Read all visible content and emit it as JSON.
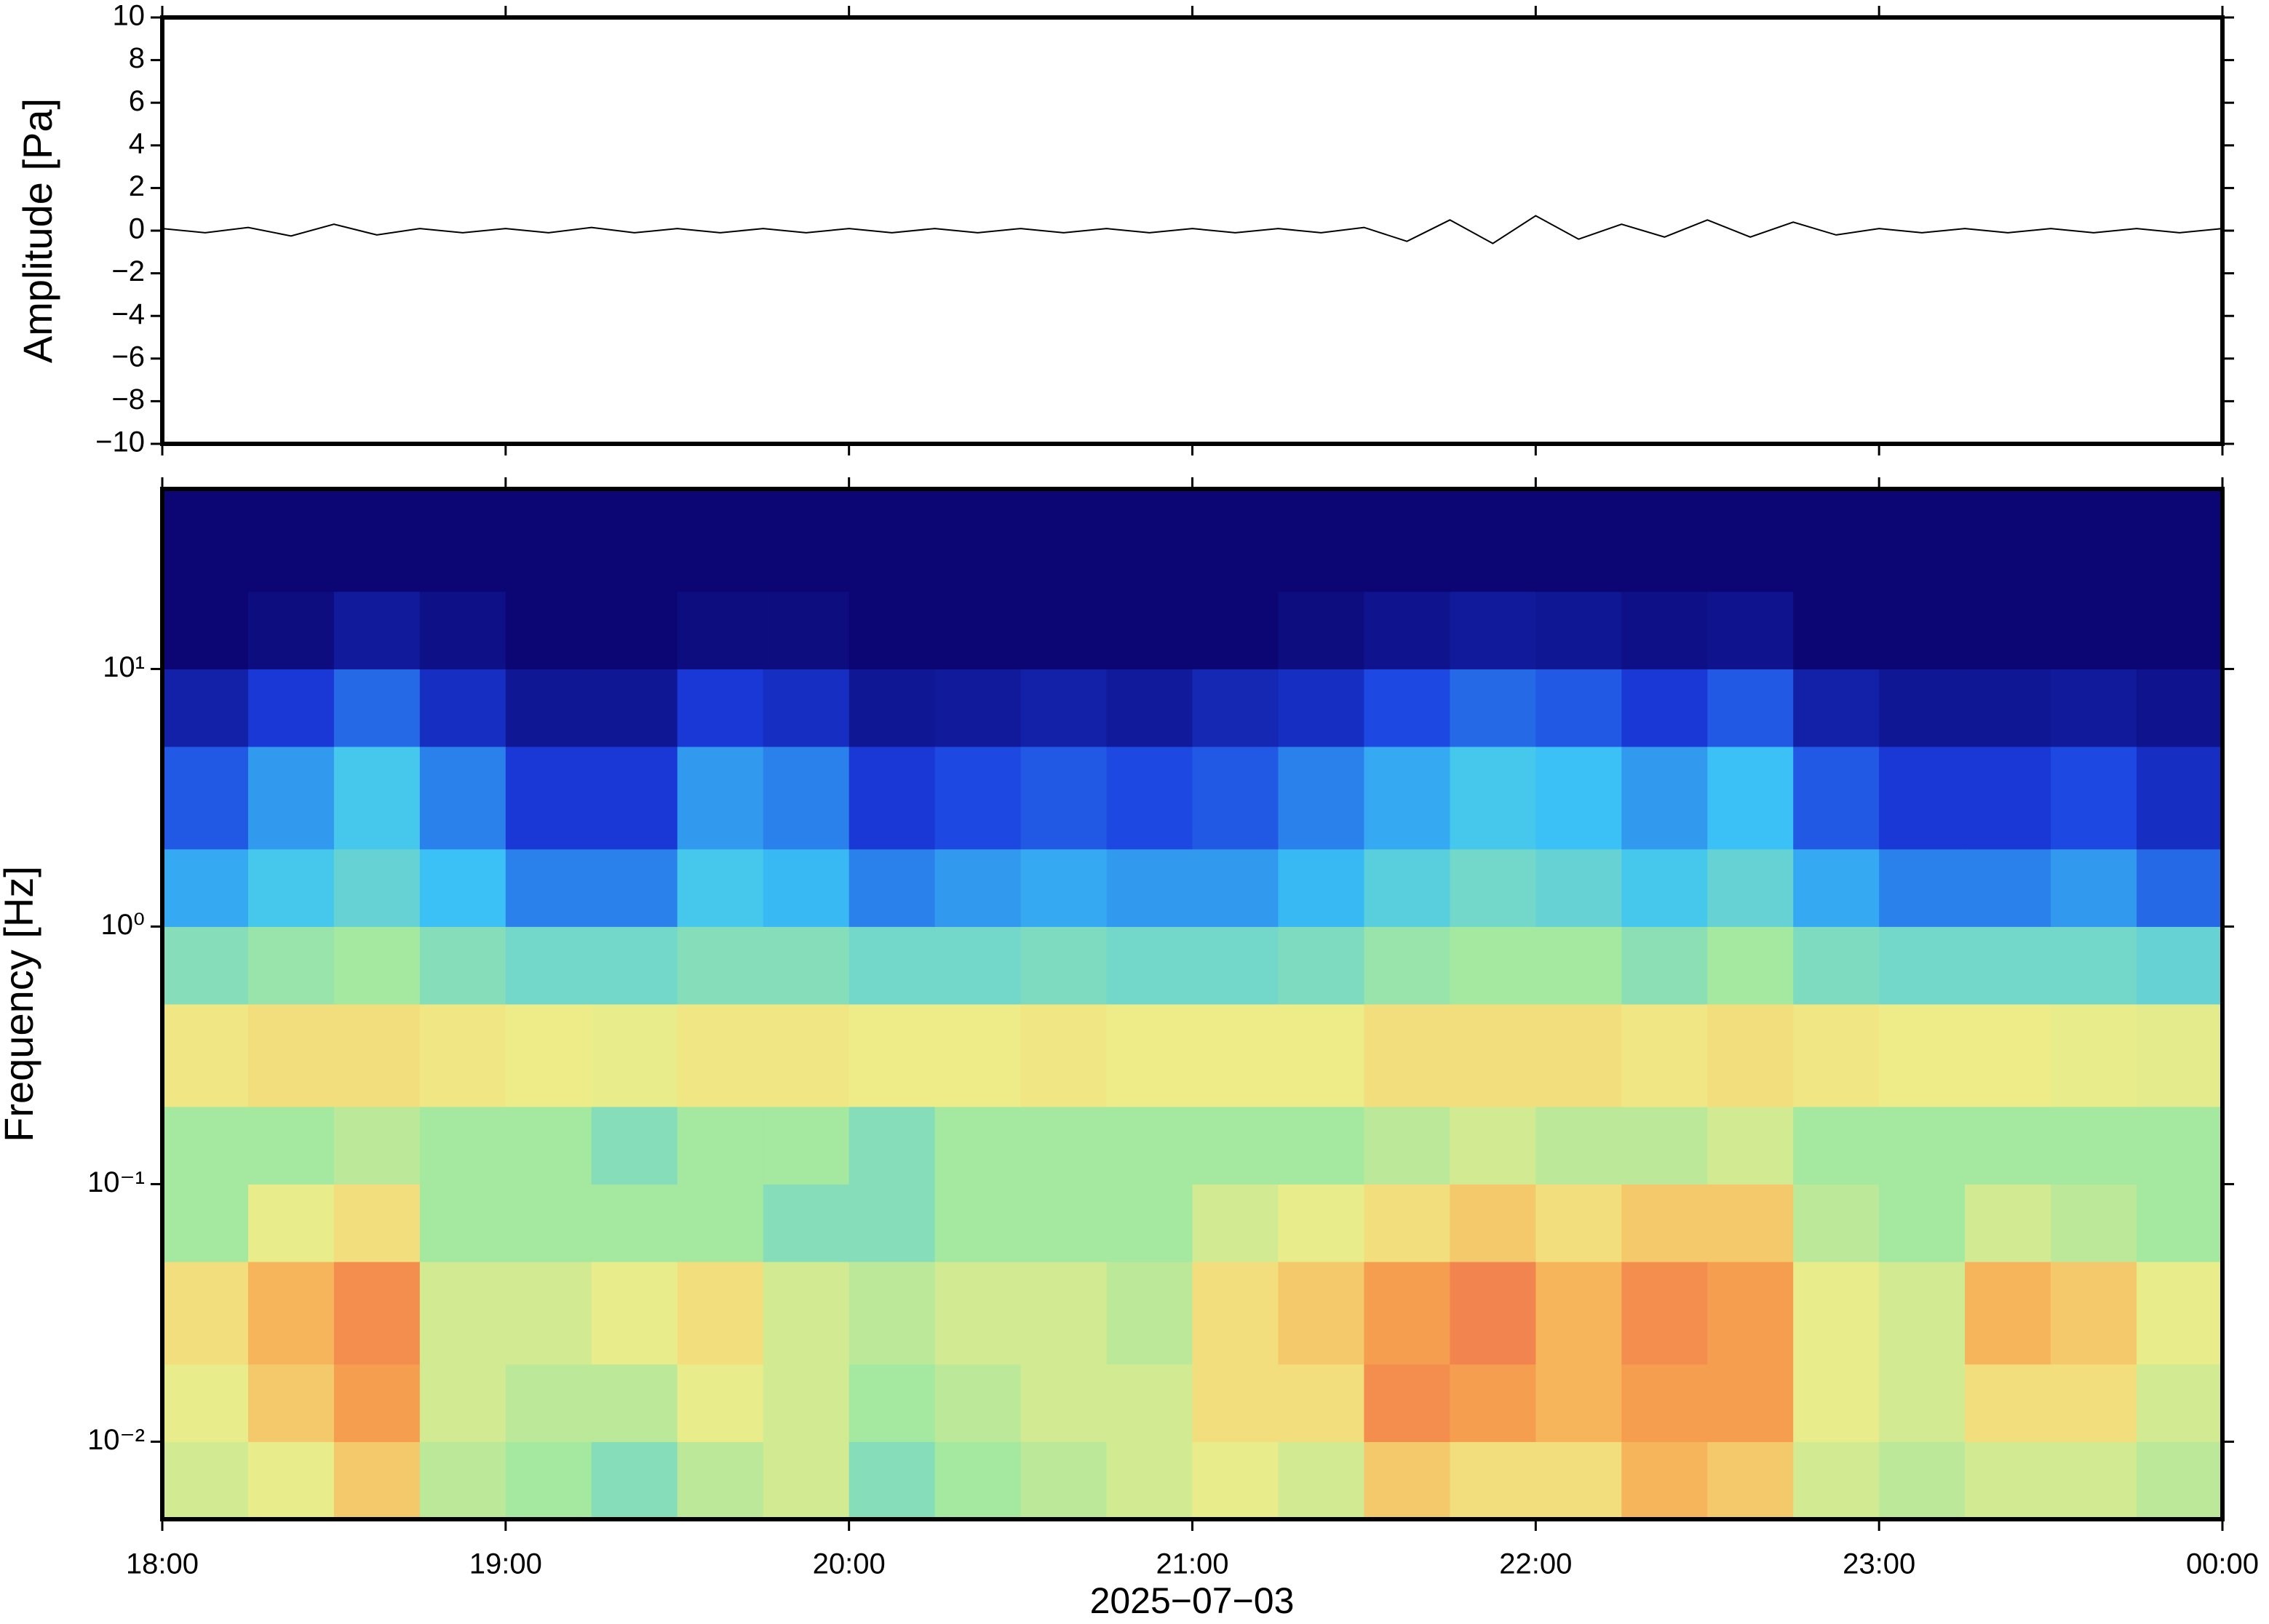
{
  "chart_data": [
    {
      "type": "line",
      "ylabel": "Amplitude [Pa]",
      "xlim": [
        18,
        24
      ],
      "xticks": [
        18,
        19,
        20,
        21,
        22,
        23,
        24
      ],
      "ylim": [
        -10,
        10
      ],
      "yticks": [
        {
          "value": -10,
          "label": "−10"
        },
        {
          "value": -8,
          "label": "−8"
        },
        {
          "value": -6,
          "label": "−6"
        },
        {
          "value": -4,
          "label": "−4"
        },
        {
          "value": -2,
          "label": "−2"
        },
        0,
        2,
        4,
        6,
        8,
        10
      ],
      "x": [
        18,
        18.125,
        18.25,
        18.375,
        18.5,
        18.625,
        18.75,
        18.875,
        19,
        19.125,
        19.25,
        19.375,
        19.5,
        19.625,
        19.75,
        19.875,
        20,
        20.125,
        20.25,
        20.375,
        20.5,
        20.625,
        20.75,
        20.875,
        21,
        21.125,
        21.25,
        21.375,
        21.5,
        21.625,
        21.75,
        21.875,
        22,
        22.125,
        22.25,
        22.375,
        22.5,
        22.625,
        22.75,
        22.875,
        23,
        23.125,
        23.25,
        23.375,
        23.5,
        23.625,
        23.75,
        23.875,
        24
      ],
      "series": [
        {
          "name": "Amplitude",
          "color": "#000000",
          "values": [
            0.1,
            -0.1,
            0.15,
            -0.25,
            0.3,
            -0.2,
            0.1,
            -0.1,
            0.1,
            -0.1,
            0.15,
            -0.1,
            0.1,
            -0.1,
            0.1,
            -0.1,
            0.1,
            -0.1,
            0.1,
            -0.1,
            0.1,
            -0.1,
            0.1,
            -0.1,
            0.1,
            -0.1,
            0.1,
            -0.1,
            0.15,
            -0.5,
            0.5,
            -0.6,
            0.7,
            -0.4,
            0.3,
            -0.3,
            0.5,
            -0.3,
            0.4,
            -0.2,
            0.1,
            -0.1,
            0.1,
            -0.1,
            0.1,
            -0.1,
            0.1,
            -0.1,
            0.1
          ]
        }
      ]
    },
    {
      "type": "spectrogram",
      "xlabel": "2025−07−03",
      "ylabel": "Frequency [Hz]",
      "ylog": true,
      "xlim": [
        18,
        24
      ],
      "xticks": [
        {
          "value": 18,
          "label": "18:00"
        },
        {
          "value": 19,
          "label": "19:00"
        },
        {
          "value": 20,
          "label": "20:00"
        },
        {
          "value": 21,
          "label": "21:00"
        },
        {
          "value": 22,
          "label": "22:00"
        },
        {
          "value": 23,
          "label": "23:00"
        },
        {
          "value": 24,
          "label": "00:00"
        }
      ],
      "ylim": [
        0.005,
        50
      ],
      "yticks": [
        {
          "value": 0.01,
          "label": "10⁻²"
        },
        {
          "value": 0.1,
          "label": "10⁻¹"
        },
        {
          "value": 1,
          "label": "10⁰"
        },
        {
          "value": 10,
          "label": "10¹"
        }
      ],
      "colormap": [
        "#0b0673",
        "#1a3ee0",
        "#3cc4f5",
        "#a5e8a0",
        "#f0ec88",
        "#f8a650",
        "#e8524e"
      ],
      "time_bins": [
        18,
        18.25,
        18.5,
        18.75,
        19,
        19.25,
        19.5,
        19.75,
        20,
        20.25,
        20.5,
        20.75,
        21,
        21.25,
        21.5,
        21.75,
        22,
        22.25,
        22.5,
        22.75,
        23,
        23.25,
        23.5,
        23.75,
        24
      ],
      "freq_bins": [
        0.005,
        0.01,
        0.02,
        0.05,
        0.1,
        0.2,
        0.5,
        1,
        2,
        5,
        10,
        20,
        50
      ],
      "levels": [
        [
          0.6,
          0.65,
          0.75,
          0.55,
          0.5,
          0.45,
          0.55,
          0.6,
          0.45,
          0.5,
          0.55,
          0.6,
          0.65,
          0.6,
          0.75,
          0.7,
          0.7,
          0.8,
          0.75,
          0.6,
          0.55,
          0.6,
          0.6,
          0.55
        ],
        [
          0.65,
          0.75,
          0.85,
          0.6,
          0.55,
          0.55,
          0.65,
          0.6,
          0.5,
          0.55,
          0.6,
          0.6,
          0.7,
          0.7,
          0.88,
          0.85,
          0.8,
          0.85,
          0.85,
          0.65,
          0.6,
          0.7,
          0.7,
          0.6
        ],
        [
          0.7,
          0.8,
          0.88,
          0.6,
          0.6,
          0.65,
          0.7,
          0.6,
          0.55,
          0.6,
          0.6,
          0.55,
          0.7,
          0.75,
          0.85,
          0.9,
          0.8,
          0.88,
          0.85,
          0.65,
          0.6,
          0.8,
          0.75,
          0.65
        ],
        [
          0.5,
          0.65,
          0.7,
          0.5,
          0.5,
          0.5,
          0.5,
          0.45,
          0.45,
          0.5,
          0.5,
          0.5,
          0.6,
          0.65,
          0.7,
          0.75,
          0.7,
          0.75,
          0.75,
          0.55,
          0.5,
          0.6,
          0.55,
          0.5
        ],
        [
          0.5,
          0.5,
          0.55,
          0.5,
          0.5,
          0.45,
          0.5,
          0.5,
          0.45,
          0.5,
          0.5,
          0.5,
          0.5,
          0.5,
          0.55,
          0.6,
          0.55,
          0.55,
          0.6,
          0.5,
          0.5,
          0.5,
          0.5,
          0.5
        ],
        [
          0.68,
          0.7,
          0.7,
          0.68,
          0.66,
          0.65,
          0.68,
          0.68,
          0.66,
          0.66,
          0.68,
          0.66,
          0.66,
          0.66,
          0.7,
          0.7,
          0.7,
          0.68,
          0.7,
          0.68,
          0.66,
          0.66,
          0.65,
          0.64
        ],
        [
          0.45,
          0.48,
          0.5,
          0.45,
          0.42,
          0.42,
          0.45,
          0.45,
          0.42,
          0.42,
          0.44,
          0.42,
          0.42,
          0.44,
          0.48,
          0.5,
          0.5,
          0.46,
          0.5,
          0.44,
          0.42,
          0.42,
          0.42,
          0.4
        ],
        [
          0.3,
          0.35,
          0.4,
          0.33,
          0.25,
          0.25,
          0.35,
          0.32,
          0.25,
          0.28,
          0.3,
          0.28,
          0.28,
          0.32,
          0.38,
          0.42,
          0.4,
          0.35,
          0.4,
          0.3,
          0.25,
          0.25,
          0.28,
          0.22
        ],
        [
          0.2,
          0.28,
          0.35,
          0.25,
          0.15,
          0.15,
          0.28,
          0.25,
          0.15,
          0.18,
          0.2,
          0.18,
          0.2,
          0.25,
          0.3,
          0.35,
          0.33,
          0.28,
          0.33,
          0.2,
          0.15,
          0.15,
          0.18,
          0.12
        ],
        [
          0.08,
          0.15,
          0.22,
          0.12,
          0.05,
          0.05,
          0.15,
          0.12,
          0.05,
          0.06,
          0.08,
          0.06,
          0.1,
          0.12,
          0.18,
          0.22,
          0.2,
          0.15,
          0.2,
          0.08,
          0.05,
          0.05,
          0.06,
          0.04
        ],
        [
          0,
          0.02,
          0.06,
          0.03,
          0,
          0,
          0.02,
          0.02,
          0,
          0,
          0,
          0,
          0,
          0.02,
          0.04,
          0.06,
          0.05,
          0.03,
          0.04,
          0,
          0,
          0,
          0,
          0
        ],
        [
          0,
          0,
          0,
          0,
          0,
          0,
          0,
          0,
          0,
          0,
          0,
          0,
          0,
          0,
          0,
          0,
          0,
          0,
          0,
          0,
          0,
          0,
          0,
          0
        ]
      ]
    }
  ]
}
